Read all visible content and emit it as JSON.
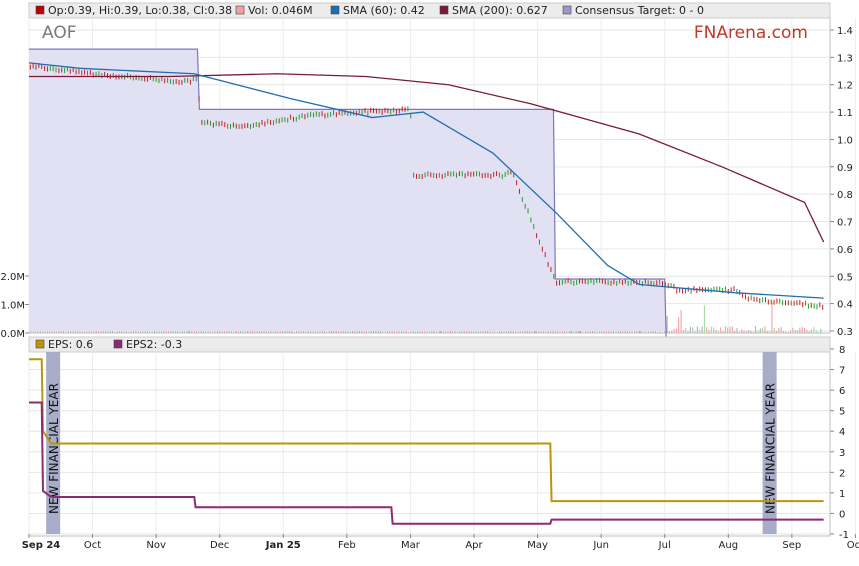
{
  "chart_data": [
    {
      "type": "line",
      "ticker": "AOF",
      "watermark": "FNArena.com",
      "legend": [
        {
          "label": "Op:0.39, Hi:0.39, Lo:0.38, Cl:0.38",
          "color": "#c00000"
        },
        {
          "label": "Vol: 0.046M",
          "color": "#f0a0a0"
        },
        {
          "label": "SMA (60): 0.42",
          "color": "#1f6fb0"
        },
        {
          "label": "SMA (200): 0.627",
          "color": "#7a1a3a"
        },
        {
          "label": "Consensus Target: 0 - 0",
          "color": "#9a98c8"
        }
      ],
      "ylim": [
        0.3,
        1.45
      ],
      "yticks": [
        "0.3",
        "0.4",
        "0.5",
        "0.6",
        "0.7",
        "0.8",
        "0.9",
        "1.0",
        "1.1",
        "1.2",
        "1.3",
        "1.4"
      ],
      "volume_ticks": [
        "0.0M",
        "1.0M",
        "2.0M"
      ],
      "xlim": [
        0,
        12.6
      ],
      "series": [
        {
          "name": "SMA (200)",
          "x": [
            0,
            0.8,
            2.2,
            3.9,
            5.3,
            6.6,
            7.9,
            9.6,
            10.9,
            12.2,
            12.5
          ],
          "values": [
            1.23,
            1.23,
            1.23,
            1.24,
            1.23,
            1.2,
            1.13,
            1.02,
            0.9,
            0.77,
            0.625
          ]
        },
        {
          "name": "SMA (60)",
          "x": [
            0,
            0.8,
            2.6,
            4.1,
            5.4,
            6.2,
            7.3,
            8.3,
            9.1,
            9.6,
            11.1,
            12.5
          ],
          "values": [
            1.28,
            1.26,
            1.24,
            1.15,
            1.08,
            1.1,
            0.95,
            0.73,
            0.54,
            0.47,
            0.44,
            0.42
          ]
        },
        {
          "name": "Consensus Target",
          "x": [
            0,
            2.65,
            2.68,
            8.25,
            8.28,
            10.0,
            10.02
          ],
          "values": [
            1.33,
            1.33,
            1.11,
            1.11,
            0.49,
            0.49,
            0.3
          ]
        },
        {
          "name": "Price",
          "x": [
            0,
            1.0,
            2.5,
            2.65,
            2.7,
            3.4,
            4.5,
            6.0,
            6.05,
            7.5,
            7.6,
            8.28,
            9.5,
            10.1,
            10.2,
            11.1,
            11.3,
            12.5
          ],
          "values": [
            1.27,
            1.24,
            1.21,
            1.23,
            1.06,
            1.05,
            1.09,
            1.11,
            0.87,
            0.87,
            0.88,
            0.48,
            0.48,
            0.47,
            0.45,
            0.45,
            0.42,
            0.39
          ]
        }
      ]
    },
    {
      "type": "line",
      "legend": [
        {
          "label": "EPS: 0.6",
          "color": "#b8960c"
        },
        {
          "label": "EPS2: -0.3",
          "color": "#8c2a72"
        }
      ],
      "ylim": [
        -1,
        8
      ],
      "yticks": [
        "-1",
        "0",
        "1",
        "2",
        "3",
        "4",
        "5",
        "6",
        "7",
        "8"
      ],
      "annotations": [
        "NEW FINANCIAL YEAR",
        "NEW FINANCIAL YEAR"
      ],
      "x_categories": [
        "Sep 24",
        "Oct",
        "Nov",
        "Dec",
        "Jan 25",
        "Feb",
        "Mar",
        "Apr",
        "May",
        "Jun",
        "Jul",
        "Aug",
        "Sep",
        "Oct"
      ],
      "series": [
        {
          "name": "EPS",
          "x": [
            0,
            0.2,
            0.22,
            0.35,
            8.2,
            8.22,
            12.5
          ],
          "values": [
            7.5,
            7.5,
            4.0,
            3.4,
            3.4,
            0.6,
            0.6
          ]
        },
        {
          "name": "EPS2",
          "x": [
            0,
            0.2,
            0.22,
            0.35,
            2.6,
            2.62,
            5.7,
            5.72,
            8.2,
            8.22,
            12.5
          ],
          "values": [
            5.4,
            5.4,
            1.1,
            0.8,
            0.8,
            0.3,
            0.3,
            -0.5,
            -0.5,
            -0.3,
            -0.3
          ]
        }
      ]
    }
  ]
}
